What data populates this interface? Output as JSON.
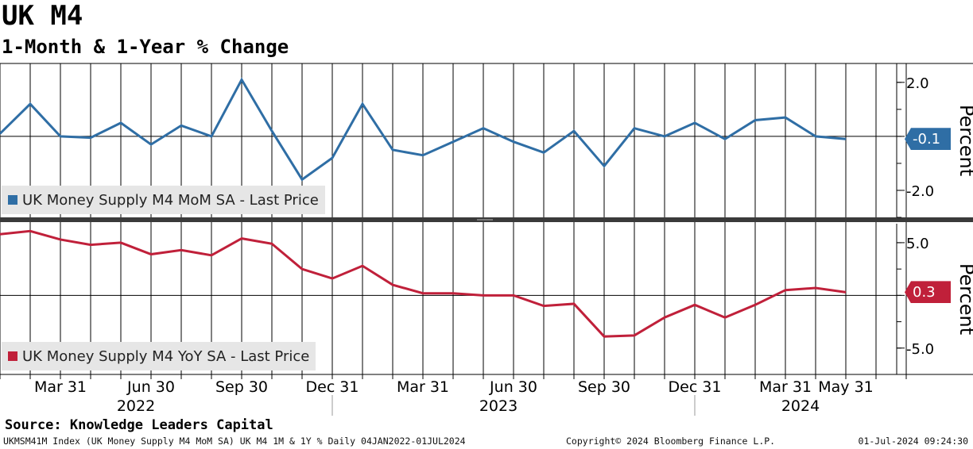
{
  "title": "UK M4",
  "subtitle": "1-Month & 1-Year % Change",
  "source": "Source: Knowledge Leaders Capital",
  "footer": {
    "left": "UKMSM41M Index (UK Money Supply M4 MoM SA) UK M4 1M & 1Y %  Daily 04JAN2022-01JUL2024",
    "center": "Copyright© 2024 Bloomberg Finance L.P.",
    "right": "01-Jul-2024 09:24:30"
  },
  "colors": {
    "mom": "#2f6ea5",
    "yoy": "#c0203a",
    "legend_bg": "#e6e6e6"
  },
  "chart_data": [
    {
      "type": "line",
      "name": "UK Money Supply M4 MoM SA - Last Price",
      "legend": "UK Money Supply M4 MoM SA - Last Price",
      "ylabel": "Percent",
      "ylim": [
        -3.0,
        2.7
      ],
      "yticks": [
        2.0,
        0.0,
        -2.0
      ],
      "ytick_labels": [
        "2.0",
        "",
        "-2.0"
      ],
      "last_value_label": "-0.1",
      "x": [
        "2022-01",
        "2022-02",
        "2022-03",
        "2022-04",
        "2022-05",
        "2022-06",
        "2022-07",
        "2022-08",
        "2022-09",
        "2022-10",
        "2022-11",
        "2022-12",
        "2023-01",
        "2023-02",
        "2023-03",
        "2023-04",
        "2023-05",
        "2023-06",
        "2023-07",
        "2023-08",
        "2023-09",
        "2023-10",
        "2023-11",
        "2023-12",
        "2024-01",
        "2024-02",
        "2024-03",
        "2024-04",
        "2024-05"
      ],
      "values": [
        0.1,
        1.2,
        0.0,
        -0.05,
        0.5,
        -0.3,
        0.4,
        0.0,
        2.1,
        0.2,
        -1.6,
        -0.8,
        1.2,
        -0.5,
        -0.7,
        -0.2,
        0.3,
        -0.2,
        -0.6,
        0.2,
        -1.1,
        0.3,
        0.0,
        0.5,
        -0.1,
        0.6,
        0.7,
        0.0,
        -0.1
      ]
    },
    {
      "type": "line",
      "name": "UK Money Supply M4 YoY SA - Last Price",
      "legend": "UK Money Supply M4 YoY SA - Last Price",
      "ylabel": "Percent",
      "ylim": [
        -7.5,
        6.8
      ],
      "yticks": [
        5.0,
        0.0,
        -5.0
      ],
      "ytick_labels": [
        "5.0",
        "",
        "-5.0"
      ],
      "last_value_label": "0.3",
      "x": [
        "2022-01",
        "2022-02",
        "2022-03",
        "2022-04",
        "2022-05",
        "2022-06",
        "2022-07",
        "2022-08",
        "2022-09",
        "2022-10",
        "2022-11",
        "2022-12",
        "2023-01",
        "2023-02",
        "2023-03",
        "2023-04",
        "2023-05",
        "2023-06",
        "2023-07",
        "2023-08",
        "2023-09",
        "2023-10",
        "2023-11",
        "2023-12",
        "2024-01",
        "2024-02",
        "2024-03",
        "2024-04",
        "2024-05"
      ],
      "values": [
        5.8,
        6.1,
        5.3,
        4.8,
        5.0,
        3.9,
        4.3,
        3.8,
        5.4,
        4.9,
        2.5,
        1.6,
        2.8,
        1.0,
        0.2,
        0.2,
        0.0,
        0.0,
        -1.0,
        -0.8,
        -3.9,
        -3.8,
        -2.1,
        -0.9,
        -2.1,
        -0.9,
        0.5,
        0.7,
        0.3
      ]
    }
  ],
  "x_axis": {
    "month_labels": [
      {
        "text": "Mar 31",
        "date": "2022-03"
      },
      {
        "text": "Jun 30",
        "date": "2022-06"
      },
      {
        "text": "Sep 30",
        "date": "2022-09"
      },
      {
        "text": "Dec 31",
        "date": "2022-12"
      },
      {
        "text": "Mar 31",
        "date": "2023-03"
      },
      {
        "text": "Jun 30",
        "date": "2023-06"
      },
      {
        "text": "Sep 30",
        "date": "2023-09"
      },
      {
        "text": "Dec 31",
        "date": "2023-12"
      },
      {
        "text": "Mar 31",
        "date": "2024-03"
      },
      {
        "text": "May 31",
        "date": "2024-05"
      }
    ],
    "year_labels": [
      {
        "text": "2022",
        "date": "2022-06"
      },
      {
        "text": "2023",
        "date": "2023-06"
      },
      {
        "text": "2024",
        "date": "2024-04"
      }
    ]
  }
}
